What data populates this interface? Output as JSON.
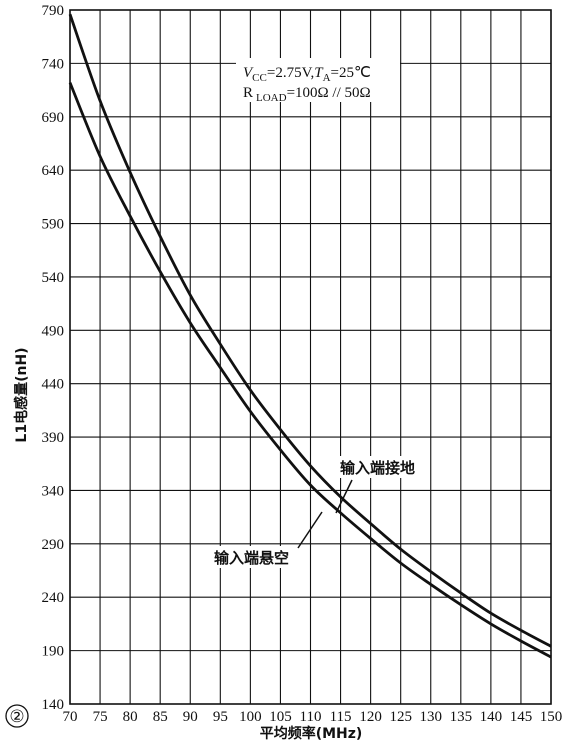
{
  "figure_number": "②",
  "chart_data": {
    "type": "line",
    "xlabel": "平均频率(MHz)",
    "ylabel": "L1电感量(nH)",
    "xlim": [
      70,
      150
    ],
    "ylim": [
      140,
      790
    ],
    "xticks": [
      70,
      75,
      80,
      85,
      90,
      95,
      100,
      105,
      110,
      115,
      120,
      125,
      130,
      135,
      140,
      145,
      150
    ],
    "yticks": [
      140,
      190,
      240,
      290,
      340,
      390,
      440,
      490,
      540,
      590,
      640,
      690,
      740,
      790
    ],
    "grid": true,
    "legend": "none",
    "conditions": {
      "line1": {
        "v": "V",
        "v_sub": "CC",
        "mid": "=2.75V,",
        "t": "T",
        "t_sub": "A",
        "end": "=25℃"
      },
      "line2": {
        "r": "R",
        "r_sub": "LOAD",
        "end": "=100Ω // 50Ω"
      }
    },
    "series": [
      {
        "name": "输入端接地",
        "x": [
          70,
          75,
          80,
          85,
          90,
          95,
          100,
          105,
          110,
          115,
          120,
          125,
          130,
          135,
          140,
          145,
          150
        ],
        "y": [
          786,
          705,
          638,
          578,
          523,
          477,
          434,
          397,
          363,
          334,
          309,
          285,
          264,
          244,
          225,
          209,
          194
        ]
      },
      {
        "name": "输入端悬空",
        "x": [
          70,
          75,
          80,
          85,
          90,
          95,
          100,
          105,
          110,
          115,
          120,
          125,
          130,
          135,
          140,
          145,
          150
        ],
        "y": [
          722,
          653,
          597,
          545,
          497,
          455,
          414,
          378,
          345,
          319,
          295,
          272,
          252,
          233,
          215,
          199,
          184
        ]
      }
    ]
  }
}
